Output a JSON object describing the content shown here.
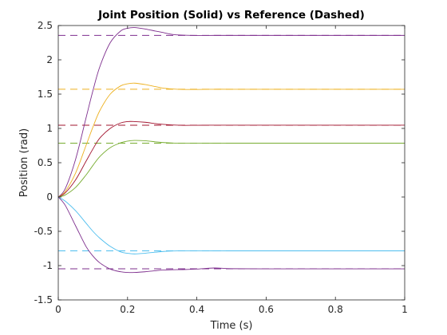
{
  "chart_data": {
    "type": "line",
    "title": "Joint Position (Solid) vs Reference (Dashed)",
    "xlabel": "Time (s)",
    "ylabel": "Position (rad)",
    "xlim": [
      0,
      1
    ],
    "ylim": [
      -1.5,
      2.5
    ],
    "xticks": [
      0,
      0.2,
      0.4,
      0.6,
      0.8,
      1
    ],
    "xtick_labels": [
      "0",
      "0.2",
      "0.4",
      "0.6",
      "0.8",
      "1"
    ],
    "yticks": [
      -1.5,
      -1,
      -0.5,
      0,
      0.5,
      1,
      1.5,
      2,
      2.5
    ],
    "ytick_labels": [
      "-1.5",
      "-1",
      "-0.5",
      "0",
      "0.5",
      "1",
      "1.5",
      "2",
      "2.5"
    ],
    "grid": false,
    "legend": "none",
    "series": [
      {
        "color": "#7E2F8E",
        "reference": 2.3562,
        "x": [
          0,
          0.02,
          0.05,
          0.08,
          0.1,
          0.12,
          0.15,
          0.18,
          0.2,
          0.22,
          0.25,
          0.28,
          0.3,
          0.33,
          0.36,
          0.4,
          0.45,
          0.5,
          0.6,
          0.8,
          1.0
        ],
        "y": [
          0,
          0.12,
          0.55,
          1.15,
          1.55,
          1.9,
          2.25,
          2.42,
          2.46,
          2.47,
          2.45,
          2.42,
          2.4,
          2.37,
          2.36,
          2.355,
          2.356,
          2.356,
          2.356,
          2.356,
          2.356
        ]
      },
      {
        "color": "#EDB120",
        "reference": 1.5708,
        "x": [
          0,
          0.02,
          0.05,
          0.08,
          0.1,
          0.12,
          0.15,
          0.18,
          0.2,
          0.22,
          0.25,
          0.28,
          0.3,
          0.33,
          0.36,
          0.4,
          0.45,
          0.5,
          0.6,
          0.8,
          1.0
        ],
        "y": [
          0,
          0.08,
          0.35,
          0.75,
          1.02,
          1.26,
          1.5,
          1.62,
          1.65,
          1.66,
          1.64,
          1.61,
          1.59,
          1.575,
          1.568,
          1.568,
          1.571,
          1.571,
          1.571,
          1.571,
          1.571
        ]
      },
      {
        "color": "#A2142F",
        "reference": 1.0472,
        "x": [
          0,
          0.02,
          0.05,
          0.08,
          0.1,
          0.12,
          0.15,
          0.18,
          0.2,
          0.22,
          0.25,
          0.28,
          0.3,
          0.33,
          0.36,
          0.4,
          0.45,
          0.5,
          0.6,
          0.8,
          1.0
        ],
        "y": [
          0,
          0.06,
          0.25,
          0.52,
          0.7,
          0.86,
          1.0,
          1.08,
          1.1,
          1.1,
          1.09,
          1.07,
          1.06,
          1.05,
          1.045,
          1.046,
          1.047,
          1.047,
          1.047,
          1.047,
          1.047
        ]
      },
      {
        "color": "#77AC30",
        "reference": 0.7854,
        "x": [
          0,
          0.02,
          0.05,
          0.08,
          0.1,
          0.12,
          0.15,
          0.18,
          0.2,
          0.22,
          0.25,
          0.28,
          0.3,
          0.33,
          0.36,
          0.4,
          0.45,
          0.5,
          0.6,
          0.8,
          1.0
        ],
        "y": [
          0,
          0.03,
          0.14,
          0.32,
          0.46,
          0.59,
          0.72,
          0.79,
          0.815,
          0.825,
          0.82,
          0.805,
          0.795,
          0.787,
          0.784,
          0.784,
          0.785,
          0.785,
          0.785,
          0.785,
          0.785
        ]
      },
      {
        "color": "#4DBEEE",
        "reference": -0.7854,
        "x": [
          0,
          0.02,
          0.05,
          0.08,
          0.1,
          0.12,
          0.15,
          0.18,
          0.2,
          0.22,
          0.25,
          0.28,
          0.3,
          0.33,
          0.36,
          0.4,
          0.45,
          0.5,
          0.6,
          0.8,
          1.0
        ],
        "y": [
          0,
          -0.06,
          -0.2,
          -0.38,
          -0.5,
          -0.6,
          -0.72,
          -0.8,
          -0.82,
          -0.83,
          -0.82,
          -0.805,
          -0.795,
          -0.787,
          -0.784,
          -0.784,
          -0.785,
          -0.785,
          -0.785,
          -0.785,
          -0.785
        ]
      },
      {
        "color": "#7E2F8E",
        "reference": -1.0472,
        "x": [
          0,
          0.02,
          0.05,
          0.08,
          0.1,
          0.12,
          0.15,
          0.18,
          0.2,
          0.22,
          0.25,
          0.28,
          0.3,
          0.33,
          0.36,
          0.4,
          0.45,
          0.5,
          0.6,
          0.8,
          1.0
        ],
        "y": [
          0,
          -0.12,
          -0.42,
          -0.72,
          -0.86,
          -0.96,
          -1.05,
          -1.09,
          -1.1,
          -1.1,
          -1.09,
          -1.075,
          -1.065,
          -1.06,
          -1.058,
          -1.05,
          -1.035,
          -1.045,
          -1.047,
          -1.047,
          -1.047
        ]
      }
    ]
  }
}
